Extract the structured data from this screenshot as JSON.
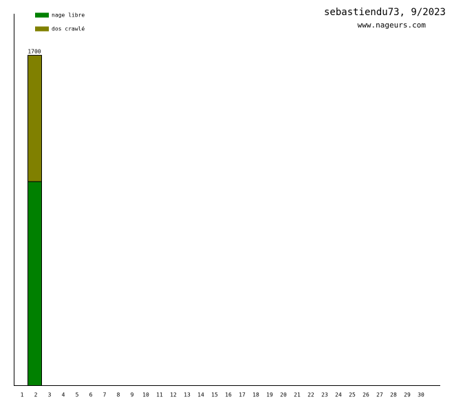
{
  "chart_data": {
    "type": "stacked_bar",
    "title": "sebastiendu73, 9/2023",
    "subtitle": "www.nageurs.com",
    "categories": [
      "1",
      "2",
      "3",
      "4",
      "5",
      "6",
      "7",
      "8",
      "9",
      "10",
      "11",
      "12",
      "13",
      "14",
      "15",
      "16",
      "17",
      "18",
      "19",
      "20",
      "21",
      "22",
      "23",
      "24",
      "25",
      "26",
      "27",
      "28",
      "29",
      "30"
    ],
    "series": [
      {
        "name": "nage libre",
        "color": "#008000",
        "values": [
          null,
          1050,
          null,
          null,
          null,
          null,
          null,
          null,
          null,
          null,
          null,
          null,
          null,
          null,
          null,
          null,
          null,
          null,
          null,
          null,
          null,
          null,
          null,
          null,
          null,
          null,
          null,
          null,
          null,
          null
        ]
      },
      {
        "name": "dos crawlé",
        "color": "#808000",
        "values": [
          null,
          650,
          null,
          null,
          null,
          null,
          null,
          null,
          null,
          null,
          null,
          null,
          null,
          null,
          null,
          null,
          null,
          null,
          null,
          null,
          null,
          null,
          null,
          null,
          null,
          null,
          null,
          null,
          null,
          null
        ]
      }
    ],
    "totals": [
      null,
      1700,
      null,
      null,
      null,
      null,
      null,
      null,
      null,
      null,
      null,
      null,
      null,
      null,
      null,
      null,
      null,
      null,
      null,
      null,
      null,
      null,
      null,
      null,
      null,
      null,
      null,
      null,
      null,
      null
    ],
    "ylim": [
      0,
      1912
    ],
    "legend": "top-left"
  }
}
